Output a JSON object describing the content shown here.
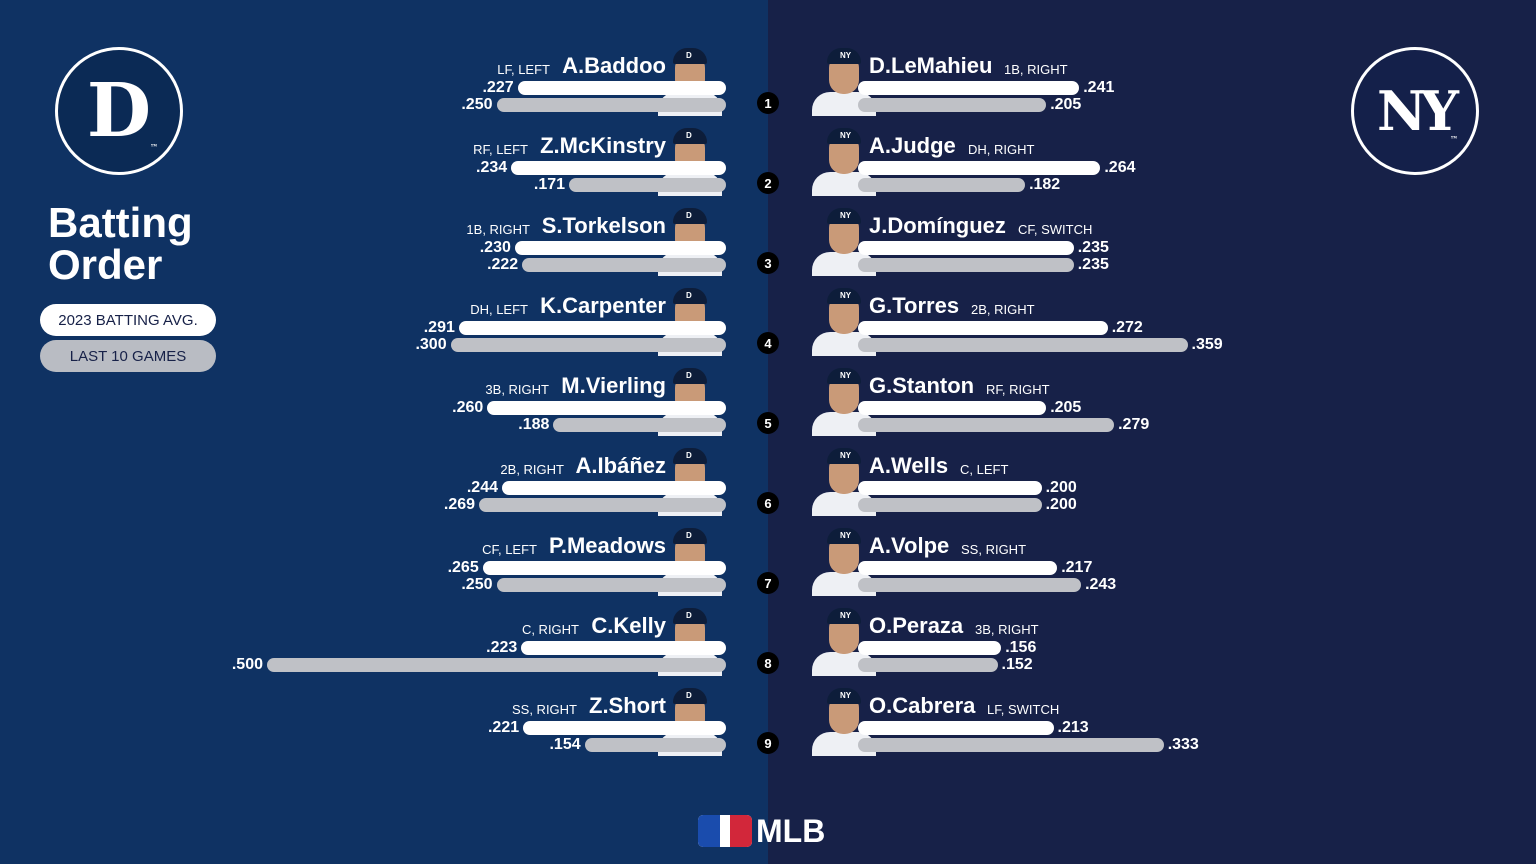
{
  "title": "Batting Order",
  "legend": {
    "primary": "2023 BATTING AVG.",
    "secondary": "LAST 10 GAMES"
  },
  "teams": {
    "left": {
      "logo_text": "D",
      "logo_mark": "™"
    },
    "right": {
      "logo_text": "NY",
      "logo_mark": "™"
    }
  },
  "footer": {
    "brand": "MLB"
  },
  "colors": {
    "left_bg": "#0f3263",
    "right_bg": "#172148",
    "primary_bar": "#ffffff",
    "secondary_bar": "#bfc1c6"
  },
  "chart_data": {
    "type": "bar",
    "series": [
      {
        "name": "2023 BATTING AVG."
      },
      {
        "name": "LAST 10 GAMES"
      }
    ],
    "order": [
      "1",
      "2",
      "3",
      "4",
      "5",
      "6",
      "7",
      "8",
      "9"
    ],
    "left_team": [
      {
        "name": "A.Baddoo",
        "pos": "LF, LEFT",
        "avg": ".227",
        "last10": ".250"
      },
      {
        "name": "Z.McKinstry",
        "pos": "RF, LEFT",
        "avg": ".234",
        "last10": ".171"
      },
      {
        "name": "S.Torkelson",
        "pos": "1B, RIGHT",
        "avg": ".230",
        "last10": ".222"
      },
      {
        "name": "K.Carpenter",
        "pos": "DH, LEFT",
        "avg": ".291",
        "last10": ".300"
      },
      {
        "name": "M.Vierling",
        "pos": "3B, RIGHT",
        "avg": ".260",
        "last10": ".188"
      },
      {
        "name": "A.Ibáñez",
        "pos": "2B, RIGHT",
        "avg": ".244",
        "last10": ".269"
      },
      {
        "name": "P.Meadows",
        "pos": "CF, LEFT",
        "avg": ".265",
        "last10": ".250"
      },
      {
        "name": "C.Kelly",
        "pos": "C, RIGHT",
        "avg": ".223",
        "last10": ".500"
      },
      {
        "name": "Z.Short",
        "pos": "SS, RIGHT",
        "avg": ".221",
        "last10": ".154"
      }
    ],
    "right_team": [
      {
        "name": "D.LeMahieu",
        "pos": "1B, RIGHT",
        "avg": ".241",
        "last10": ".205"
      },
      {
        "name": "A.Judge",
        "pos": "DH, RIGHT",
        "avg": ".264",
        "last10": ".182"
      },
      {
        "name": "J.Domínguez",
        "pos": "CF, SWITCH",
        "avg": ".235",
        "last10": ".235"
      },
      {
        "name": "G.Torres",
        "pos": "2B, RIGHT",
        "avg": ".272",
        "last10": ".359"
      },
      {
        "name": "G.Stanton",
        "pos": "RF, RIGHT",
        "avg": ".205",
        "last10": ".279"
      },
      {
        "name": "A.Wells",
        "pos": "C, LEFT",
        "avg": ".200",
        "last10": ".200"
      },
      {
        "name": "A.Volpe",
        "pos": "SS, RIGHT",
        "avg": ".217",
        "last10": ".243"
      },
      {
        "name": "O.Peraza",
        "pos": "3B, RIGHT",
        "avg": ".156",
        "last10": ".152"
      },
      {
        "name": "O.Cabrera",
        "pos": "LF, SWITCH",
        "avg": ".213",
        "last10": ".333"
      }
    ]
  }
}
